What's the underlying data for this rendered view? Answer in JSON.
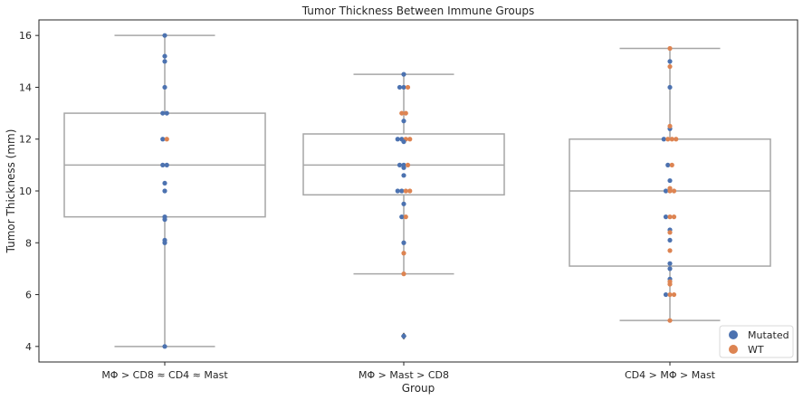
{
  "chart_data": {
    "type": "box",
    "title": "Tumor Thickness Between Immune Groups",
    "xlabel": "Group",
    "ylabel": "Tumor Thickness (mm)",
    "ylim": [
      3.4,
      16.6
    ],
    "yticks": [
      4,
      6,
      8,
      10,
      12,
      14,
      16
    ],
    "categories": [
      "MΦ > CD8 ≈ CD4 ≈ Mast",
      "MΦ > Mast > CD8",
      "CD4 > MΦ > Mast"
    ],
    "legend": {
      "placement": "lower-right",
      "entries": [
        "Mutated",
        "WT"
      ]
    },
    "colors": {
      "Mutated": "#4c72b0",
      "WT": "#dd8452",
      "box": "#a6a6a6"
    },
    "boxes": [
      {
        "q1": 9.0,
        "median": 11.0,
        "q3": 13.0,
        "whisker_low": 4.0,
        "whisker_high": 16.0,
        "outliers": []
      },
      {
        "q1": 9.85,
        "median": 11.0,
        "q3": 12.2,
        "whisker_low": 6.8,
        "whisker_high": 14.5,
        "outliers": [
          4.4
        ]
      },
      {
        "q1": 7.1,
        "median": 10.0,
        "q3": 12.0,
        "whisker_low": 5.0,
        "whisker_high": 15.5,
        "outliers": []
      }
    ],
    "series": [
      {
        "name": "Mutated",
        "points": [
          [
            0,
            16.0
          ],
          [
            0,
            15.2
          ],
          [
            0,
            15.0
          ],
          [
            0,
            14.0
          ],
          [
            0,
            13.0
          ],
          [
            0,
            13.0
          ],
          [
            0,
            12.0
          ],
          [
            0,
            11.0
          ],
          [
            0,
            11.0
          ],
          [
            0,
            10.3
          ],
          [
            0,
            10.0
          ],
          [
            0,
            9.0
          ],
          [
            0,
            8.9
          ],
          [
            0,
            8.1
          ],
          [
            0,
            8.0
          ],
          [
            0,
            4.0
          ],
          [
            1,
            14.5
          ],
          [
            1,
            14.0
          ],
          [
            1,
            14.0
          ],
          [
            1,
            12.7
          ],
          [
            1,
            12.0
          ],
          [
            1,
            12.0
          ],
          [
            1,
            11.9
          ],
          [
            1,
            11.0
          ],
          [
            1,
            11.0
          ],
          [
            1,
            10.9
          ],
          [
            1,
            10.6
          ],
          [
            1,
            10.0
          ],
          [
            1,
            10.0
          ],
          [
            1,
            9.5
          ],
          [
            1,
            9.0
          ],
          [
            1,
            8.0
          ],
          [
            1,
            4.4
          ],
          [
            2,
            15.0
          ],
          [
            2,
            14.0
          ],
          [
            2,
            12.4
          ],
          [
            2,
            12.0
          ],
          [
            2,
            11.0
          ],
          [
            2,
            10.4
          ],
          [
            2,
            10.0
          ],
          [
            2,
            9.0
          ],
          [
            2,
            8.5
          ],
          [
            2,
            8.1
          ],
          [
            2,
            7.2
          ],
          [
            2,
            7.0
          ],
          [
            2,
            6.6
          ],
          [
            2,
            6.0
          ]
        ]
      },
      {
        "name": "WT",
        "points": [
          [
            0,
            12.0
          ],
          [
            1,
            14.0
          ],
          [
            1,
            13.0
          ],
          [
            1,
            13.0
          ],
          [
            1,
            12.0
          ],
          [
            1,
            12.0
          ],
          [
            1,
            11.0
          ],
          [
            1,
            10.0
          ],
          [
            1,
            10.0
          ],
          [
            1,
            9.0
          ],
          [
            1,
            7.6
          ],
          [
            1,
            6.8
          ],
          [
            2,
            15.5
          ],
          [
            2,
            14.8
          ],
          [
            2,
            12.5
          ],
          [
            2,
            12.0
          ],
          [
            2,
            12.0
          ],
          [
            2,
            12.0
          ],
          [
            2,
            11.0
          ],
          [
            2,
            10.1
          ],
          [
            2,
            10.0
          ],
          [
            2,
            10.0
          ],
          [
            2,
            9.0
          ],
          [
            2,
            9.0
          ],
          [
            2,
            8.4
          ],
          [
            2,
            7.7
          ],
          [
            2,
            6.5
          ],
          [
            2,
            6.4
          ],
          [
            2,
            6.0
          ],
          [
            2,
            6.0
          ],
          [
            2,
            5.0
          ]
        ]
      }
    ]
  }
}
